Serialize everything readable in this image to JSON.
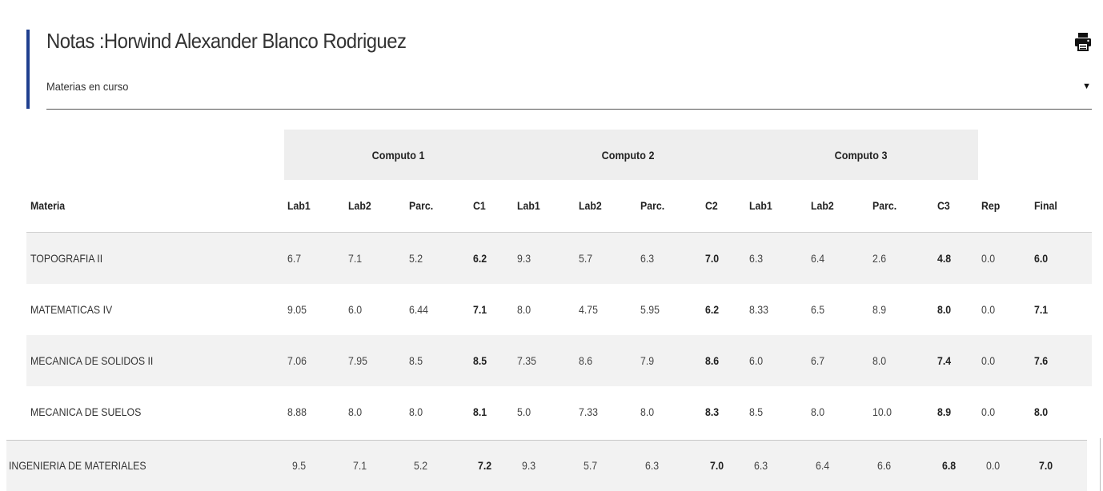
{
  "header": {
    "title": "Notas :Horwind Alexander Blanco Rodriguez",
    "print_icon": "print-icon"
  },
  "filter": {
    "selected": "Materias en curso"
  },
  "table": {
    "groups": [
      "Computo 1",
      "Computo 2",
      "Computo 3"
    ],
    "columns": [
      "Materia",
      "Lab1",
      "Lab2",
      "Parc.",
      "C1",
      "Lab1",
      "Lab2",
      "Parc.",
      "C2",
      "Lab1",
      "Lab2",
      "Parc.",
      "C3",
      "Rep",
      "Final"
    ],
    "rows": [
      [
        "TOPOGRAFIA II",
        "6.7",
        "7.1",
        "5.2",
        "6.2",
        "9.3",
        "5.7",
        "6.3",
        "7.0",
        "6.3",
        "6.4",
        "2.6",
        "4.8",
        "0.0",
        "6.0"
      ],
      [
        "MATEMATICAS IV",
        "9.05",
        "6.0",
        "6.44",
        "7.1",
        "8.0",
        "4.75",
        "5.95",
        "6.2",
        "8.33",
        "6.5",
        "8.9",
        "8.0",
        "0.0",
        "7.1"
      ],
      [
        "MECANICA DE SOLIDOS II",
        "7.06",
        "7.95",
        "8.5",
        "8.5",
        "7.35",
        "8.6",
        "7.9",
        "8.6",
        "6.0",
        "6.7",
        "8.0",
        "7.4",
        "0.0",
        "7.6"
      ],
      [
        "MECANICA DE SUELOS",
        "8.88",
        "8.0",
        "8.0",
        "8.1",
        "5.0",
        "7.33",
        "8.0",
        "8.3",
        "8.5",
        "8.0",
        "10.0",
        "8.9",
        "0.0",
        "8.0"
      ],
      [
        "INGENIERIA DE MATERIALES",
        "9.5",
        "7.1",
        "5.2",
        "7.2",
        "9.3",
        "5.7",
        "6.3",
        "7.0",
        "6.3",
        "6.4",
        "6.6",
        "6.8",
        "0.0",
        "7.0"
      ]
    ]
  },
  "colors": {
    "accent": "#1f3f8f",
    "row_shade": "#f2f2f2",
    "group_header_bg": "#eeeeee"
  }
}
